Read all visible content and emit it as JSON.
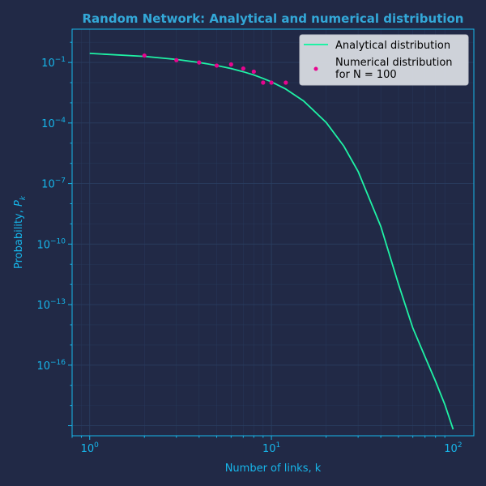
{
  "chart_data": {
    "type": "line",
    "title": "Random Network: Analytical and numerical distribution",
    "xlabel": "Number of links, k",
    "ylabel": "Probability, ",
    "ylabel_symbol": "P",
    "ylabel_subscript": "k",
    "x_scale": "log",
    "y_scale": "log",
    "xlim": [
      0.8,
      130
    ],
    "ylim_exponent": [
      -19.5,
      0.65
    ],
    "x_ticks": [
      {
        "exp": 0,
        "label": "10",
        "sup": "0"
      },
      {
        "exp": 1,
        "label": "10",
        "sup": "1"
      },
      {
        "exp": 2,
        "label": "10",
        "sup": "2"
      }
    ],
    "y_ticks": [
      {
        "exp": -1,
        "label": "10",
        "sup": "−1"
      },
      {
        "exp": -4,
        "label": "10",
        "sup": "−4"
      },
      {
        "exp": -7,
        "label": "10",
        "sup": "−7"
      },
      {
        "exp": -10,
        "label": "10",
        "sup": "−10"
      },
      {
        "exp": -13,
        "label": "10",
        "sup": "−13"
      },
      {
        "exp": -16,
        "label": "10",
        "sup": "−16"
      }
    ],
    "grid": true,
    "legend_position": "top-right",
    "series": [
      {
        "name": "Analytical distribution",
        "kind": "line",
        "color": "#1ff2a5",
        "x": [
          1,
          2,
          3,
          4,
          5,
          6,
          7,
          8,
          9,
          10,
          12,
          15,
          20,
          25,
          30,
          40,
          50,
          60,
          70,
          80,
          90,
          100
        ],
        "y_exponent": [
          -0.55,
          -0.7,
          -0.85,
          -1.0,
          -1.15,
          -1.3,
          -1.46,
          -1.62,
          -1.79,
          -1.96,
          -2.32,
          -2.9,
          -3.97,
          -5.14,
          -6.4,
          -9.13,
          -11.98,
          -14.16,
          -15.58,
          -16.8,
          -17.95,
          -19.18
        ]
      },
      {
        "name": "Numerical distribution\nfor N = 100",
        "kind": "scatter",
        "color": "#e7058f",
        "x": [
          2,
          3,
          4,
          5,
          6,
          7,
          8,
          9,
          10,
          12
        ],
        "y": [
          0.22,
          0.13,
          0.1,
          0.07,
          0.08,
          0.05,
          0.035,
          0.01,
          0.01,
          0.01
        ]
      }
    ]
  },
  "colors": {
    "background": "#212946",
    "axes_edge": "#17b6ea",
    "grid": "#2a3f63",
    "legend_bg": "#d8dbe2",
    "text": "#17b6ea"
  }
}
